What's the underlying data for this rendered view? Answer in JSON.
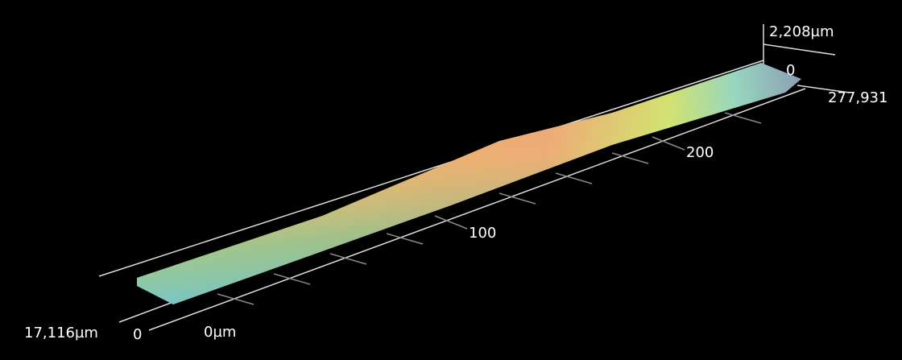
{
  "labels": {
    "z_max": "2,208µm",
    "z_origin": "0",
    "x_max": "277,931",
    "x_tick_200": "200",
    "x_tick_100": "100",
    "x_origin": "0µm",
    "y_origin": "0",
    "y_max": "17,116µm"
  }
}
